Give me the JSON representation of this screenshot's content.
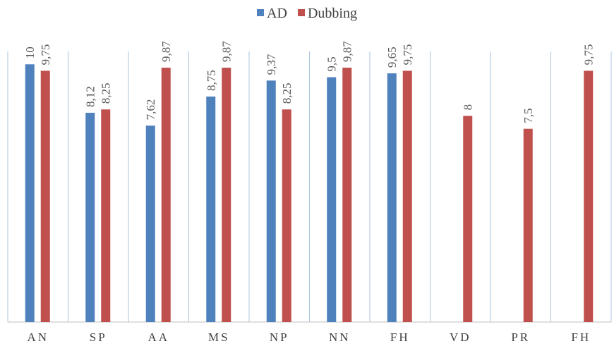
{
  "chart_data": {
    "type": "bar",
    "categories": [
      "AN",
      "SP",
      "AA",
      "MS",
      "NP",
      "NN",
      "FH",
      "VD",
      "PR",
      "FH"
    ],
    "series": [
      {
        "name": "AD",
        "values": [
          10,
          8.12,
          7.62,
          8.75,
          9.37,
          9.5,
          9.65,
          null,
          null,
          null
        ],
        "labels": [
          "10",
          "8,12",
          "7,62",
          "8,75",
          "9,37",
          "9,5",
          "9,65",
          "",
          "",
          ""
        ]
      },
      {
        "name": "Dubbing",
        "values": [
          9.75,
          8.25,
          9.87,
          9.87,
          8.25,
          9.87,
          9.75,
          8,
          7.5,
          9.75
        ],
        "labels": [
          "9,75",
          "8,25",
          "9,87",
          "9,87",
          "8,25",
          "9,87",
          "9,75",
          "8",
          "7,5",
          "9,75"
        ]
      }
    ],
    "colors": {
      "AD": "#4f81bd",
      "Dubbing": "#c0504d",
      "gridline": "#a9c4df",
      "axis": "#bfbfbf"
    },
    "ylim": [
      0,
      10.5
    ],
    "grid": "vertical category separators",
    "legend": "top-center"
  }
}
